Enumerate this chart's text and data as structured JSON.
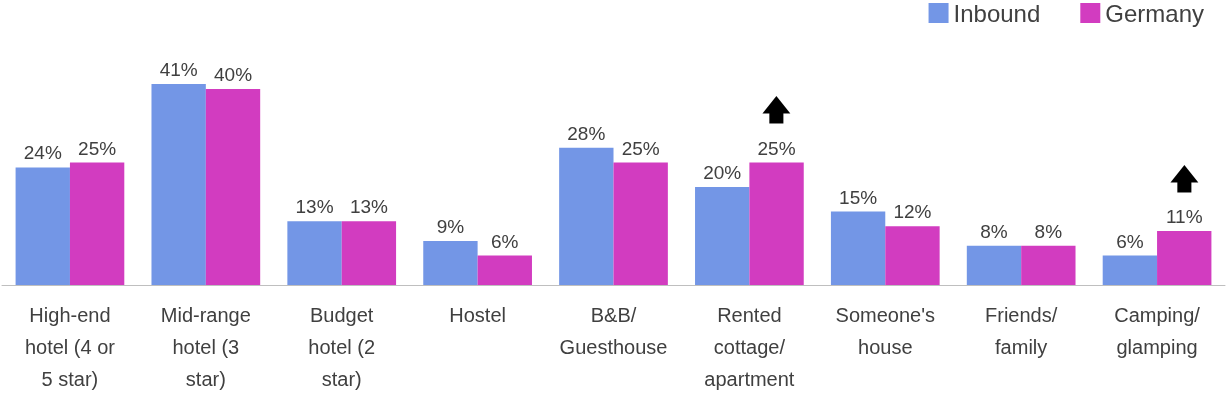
{
  "chart_data": {
    "type": "bar",
    "categories": [
      "High-end\nhotel (4 or\n5 star)",
      "Mid-range\nhotel (3\nstar)",
      "Budget\nhotel (2\nstar)",
      "Hostel",
      "B&B/\nGuesthouse",
      "Rented\ncottage/\napartment",
      "Someone's\nhouse",
      "Friends/\nfamily",
      "Camping/\nglamping"
    ],
    "series": [
      {
        "name": "Inbound",
        "color": "#7396e6",
        "values": [
          24,
          41,
          13,
          9,
          28,
          20,
          15,
          8,
          6
        ],
        "value_labels": [
          "24%",
          "41%",
          "13%",
          "9%",
          "28%",
          "20%",
          "15%",
          "8%",
          "6%"
        ]
      },
      {
        "name": "Germany",
        "color": "#d23cc0",
        "values": [
          25,
          40,
          13,
          6,
          25,
          25,
          12,
          8,
          11
        ],
        "value_labels": [
          "25%",
          "40%",
          "13%",
          "6%",
          "25%",
          "25%",
          "12%",
          "8%",
          "11%"
        ]
      }
    ],
    "annotations": [
      {
        "text": "🡅",
        "x": "Rented\ncottage/\napartment",
        "y": 25
      },
      {
        "text": "🡅",
        "x": "Camping/\nglamping",
        "y": 11
      }
    ],
    "legend": "top right",
    "tick_labels": "x"
  }
}
